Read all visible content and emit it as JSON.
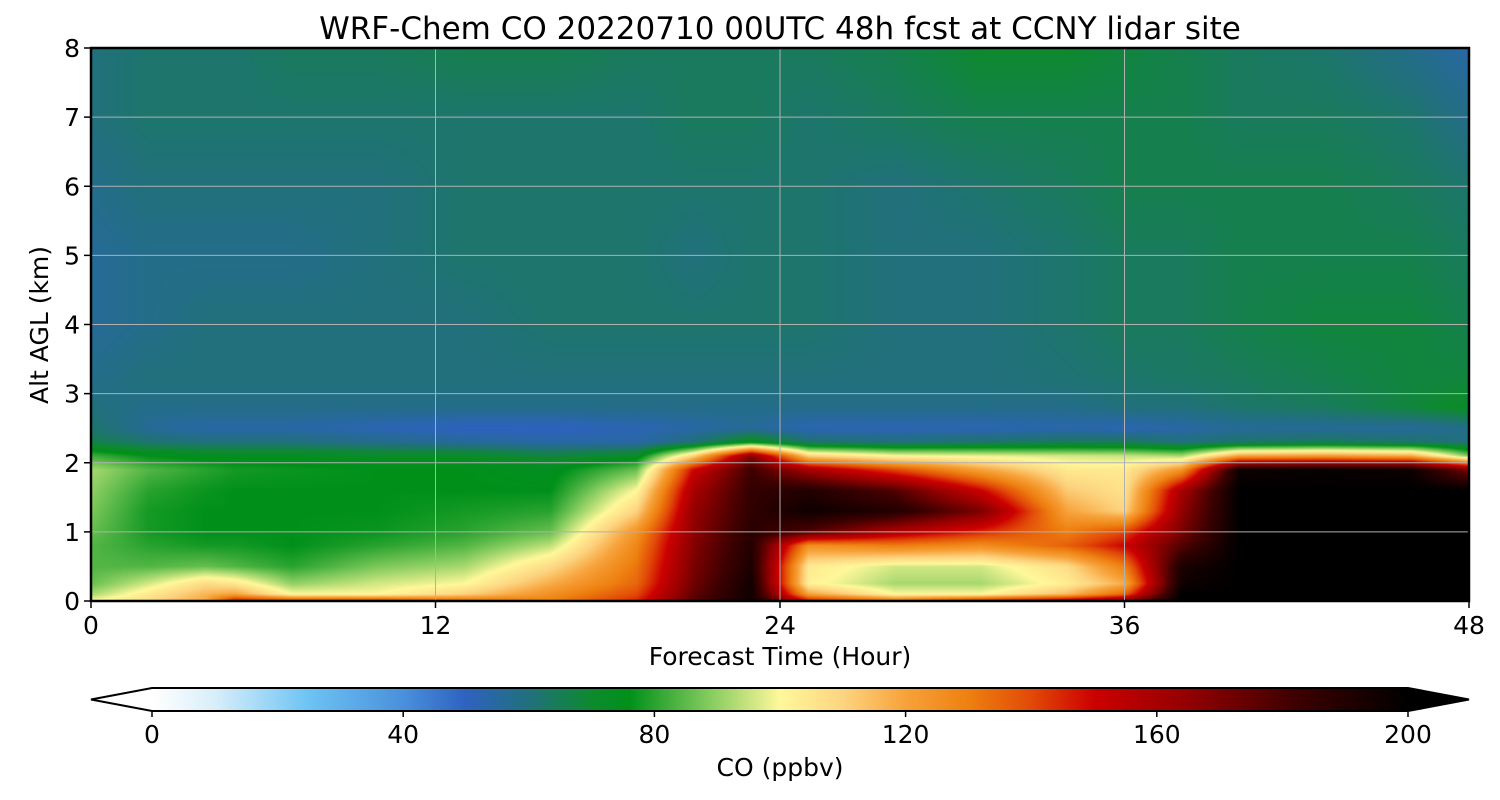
{
  "chart_data": {
    "type": "heatmap",
    "title": "WRF-Chem CO  20220710 00UTC 48h fcst at CCNY lidar site",
    "xlabel": "Forecast Time (Hour)",
    "ylabel": "Alt AGL (km)",
    "xlim": [
      0,
      48
    ],
    "ylim": [
      0,
      8
    ],
    "xticks": [
      0,
      12,
      24,
      36,
      48
    ],
    "yticks": [
      0,
      1,
      2,
      3,
      4,
      5,
      6,
      7,
      8
    ],
    "grid": true,
    "colorbar": {
      "label": "CO  (ppbv)",
      "min": 0,
      "max": 200,
      "ticks": [
        0,
        40,
        80,
        120,
        160,
        200
      ],
      "extend": "both",
      "orientation": "horizontal",
      "colors": [
        {
          "v": 0,
          "c": "#ffffff"
        },
        {
          "v": 10,
          "c": "#d8eefa"
        },
        {
          "v": 25,
          "c": "#6cc3f3"
        },
        {
          "v": 40,
          "c": "#4a90dc"
        },
        {
          "v": 50,
          "c": "#2e62c0"
        },
        {
          "v": 60,
          "c": "#21707c"
        },
        {
          "v": 70,
          "c": "#0d8a2e"
        },
        {
          "v": 76,
          "c": "#00901a"
        },
        {
          "v": 88,
          "c": "#7cc85a"
        },
        {
          "v": 100,
          "c": "#fff89a"
        },
        {
          "v": 110,
          "c": "#fdd480"
        },
        {
          "v": 120,
          "c": "#f7a23a"
        },
        {
          "v": 130,
          "c": "#ee8010"
        },
        {
          "v": 140,
          "c": "#e24a08"
        },
        {
          "v": 150,
          "c": "#cc0000"
        },
        {
          "v": 165,
          "c": "#930000"
        },
        {
          "v": 182,
          "c": "#3e0000"
        },
        {
          "v": 200,
          "c": "#000000"
        }
      ]
    },
    "x": [
      0,
      2,
      4,
      5,
      7,
      10,
      13,
      16,
      19,
      21,
      23,
      25,
      28,
      31,
      34,
      36,
      38,
      40,
      43,
      46,
      48
    ],
    "y": [
      0,
      0.1,
      0.25,
      0.5,
      0.8,
      1.0,
      1.3,
      1.6,
      1.9,
      2.1,
      2.3,
      2.5,
      2.8,
      3.2,
      4.0,
      5.0,
      6.0,
      7.0,
      8.0
    ],
    "z": [
      [
        100,
        108,
        120,
        150,
        145,
        145,
        135,
        130,
        145,
        178,
        196,
        150,
        135,
        150,
        160,
        170,
        200,
        200,
        200,
        200,
        200
      ],
      [
        92,
        104,
        116,
        120,
        100,
        100,
        110,
        125,
        140,
        175,
        196,
        120,
        100,
        100,
        115,
        135,
        200,
        200,
        200,
        200,
        200
      ],
      [
        86,
        96,
        108,
        105,
        90,
        96,
        100,
        118,
        135,
        172,
        195,
        102,
        92,
        92,
        103,
        118,
        196,
        200,
        200,
        200,
        200
      ],
      [
        84,
        84,
        86,
        84,
        80,
        88,
        92,
        108,
        132,
        170,
        192,
        104,
        96,
        96,
        108,
        130,
        192,
        200,
        200,
        200,
        200
      ],
      [
        84,
        80,
        78,
        78,
        76,
        80,
        84,
        94,
        128,
        168,
        190,
        125,
        130,
        126,
        136,
        150,
        178,
        200,
        200,
        200,
        200
      ],
      [
        86,
        78,
        76,
        76,
        76,
        77,
        80,
        86,
        124,
        166,
        188,
        178,
        158,
        145,
        130,
        140,
        170,
        200,
        200,
        200,
        200
      ],
      [
        88,
        78,
        76,
        76,
        76,
        76,
        78,
        80,
        110,
        164,
        186,
        196,
        190,
        170,
        120,
        110,
        165,
        200,
        200,
        200,
        200
      ],
      [
        90,
        80,
        77,
        76,
        76,
        76,
        76,
        76,
        100,
        160,
        185,
        190,
        178,
        150,
        112,
        106,
        160,
        200,
        200,
        200,
        200
      ],
      [
        92,
        84,
        80,
        78,
        77,
        76,
        76,
        74,
        86,
        150,
        182,
        160,
        140,
        120,
        104,
        104,
        124,
        196,
        198,
        196,
        170
      ],
      [
        82,
        76,
        74,
        74,
        74,
        72,
        72,
        68,
        72,
        110,
        168,
        110,
        100,
        98,
        96,
        95,
        92,
        120,
        122,
        118,
        88
      ],
      [
        66,
        62,
        60,
        60,
        60,
        58,
        56,
        54,
        54,
        60,
        74,
        62,
        60,
        62,
        64,
        64,
        60,
        62,
        64,
        62,
        60
      ],
      [
        62,
        56,
        54,
        54,
        54,
        52,
        50,
        50,
        52,
        54,
        56,
        52,
        52,
        52,
        53,
        52,
        54,
        56,
        56,
        56,
        58
      ],
      [
        60,
        58,
        58,
        58,
        58,
        58,
        58,
        58,
        58,
        58,
        58,
        58,
        58,
        58,
        58,
        60,
        60,
        62,
        64,
        68,
        72
      ],
      [
        58,
        60,
        60,
        60,
        60,
        60,
        60,
        60,
        60,
        60,
        60,
        60,
        60,
        60,
        61,
        62,
        63,
        64,
        66,
        68,
        68
      ],
      [
        56,
        58,
        60,
        60,
        60,
        60,
        60,
        62,
        62,
        62,
        62,
        62,
        60,
        60,
        62,
        64,
        64,
        66,
        68,
        68,
        66
      ],
      [
        56,
        58,
        58,
        58,
        58,
        60,
        62,
        62,
        62,
        60,
        62,
        62,
        60,
        60,
        62,
        64,
        64,
        66,
        66,
        66,
        64
      ],
      [
        58,
        60,
        60,
        60,
        60,
        60,
        62,
        62,
        62,
        62,
        62,
        62,
        60,
        62,
        64,
        66,
        66,
        66,
        66,
        64,
        62
      ],
      [
        60,
        62,
        62,
        62,
        62,
        62,
        62,
        62,
        62,
        64,
        64,
        62,
        64,
        66,
        66,
        66,
        66,
        64,
        64,
        62,
        58
      ],
      [
        60,
        62,
        62,
        62,
        64,
        64,
        66,
        66,
        64,
        64,
        64,
        64,
        66,
        70,
        70,
        68,
        66,
        64,
        62,
        58,
        54
      ]
    ]
  }
}
